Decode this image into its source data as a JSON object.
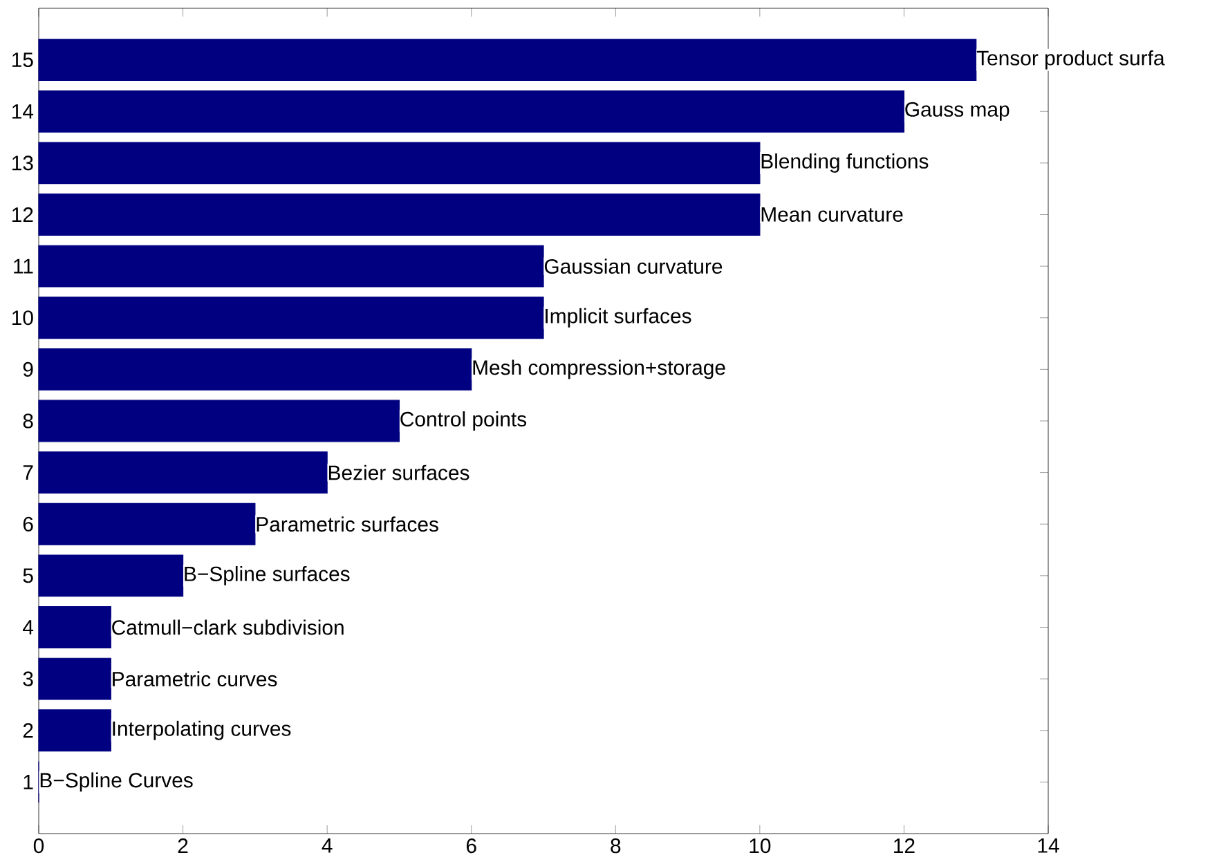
{
  "chart_data": {
    "type": "bar",
    "orientation": "horizontal",
    "color": "#000080",
    "categories": [
      "15",
      "14",
      "13",
      "12",
      "11",
      "10",
      "9",
      "8",
      "7",
      "6",
      "5",
      "4",
      "3",
      "2",
      "1"
    ],
    "values": [
      13,
      12,
      10,
      10,
      7,
      7,
      6,
      5,
      4,
      3,
      2,
      1,
      1,
      1,
      0
    ],
    "xlim": [
      0,
      14
    ],
    "xticks": [
      0,
      2,
      4,
      6,
      8,
      10,
      12,
      14
    ],
    "grid": false,
    "annotations": [
      {
        "text": "Tensor product surfa",
        "x": 13,
        "y": "15"
      },
      {
        "text": "Gauss map",
        "x": 12,
        "y": "14"
      },
      {
        "text": "Blending functions",
        "x": 10,
        "y": "13"
      },
      {
        "text": "Mean curvature",
        "x": 10,
        "y": "12"
      },
      {
        "text": "Gaussian curvature",
        "x": 7,
        "y": "11"
      },
      {
        "text": "Implicit surfaces",
        "x": 7,
        "y": "10"
      },
      {
        "text": "Mesh compression+storage",
        "x": 6,
        "y": "9"
      },
      {
        "text": "Control points",
        "x": 5,
        "y": "8"
      },
      {
        "text": "Bezier surfaces",
        "x": 4,
        "y": "7"
      },
      {
        "text": "Parametric surfaces",
        "x": 3,
        "y": "6"
      },
      {
        "text": "B−Spline surfaces",
        "x": 2,
        "y": "5"
      },
      {
        "text": "Catmull−clark subdivision",
        "x": 1,
        "y": "4"
      },
      {
        "text": "Parametric curves",
        "x": 1,
        "y": "3"
      },
      {
        "text": "Interpolating curves",
        "x": 1,
        "y": "2"
      },
      {
        "text": "B−Spline Curves",
        "x": 0,
        "y": "1"
      }
    ]
  }
}
